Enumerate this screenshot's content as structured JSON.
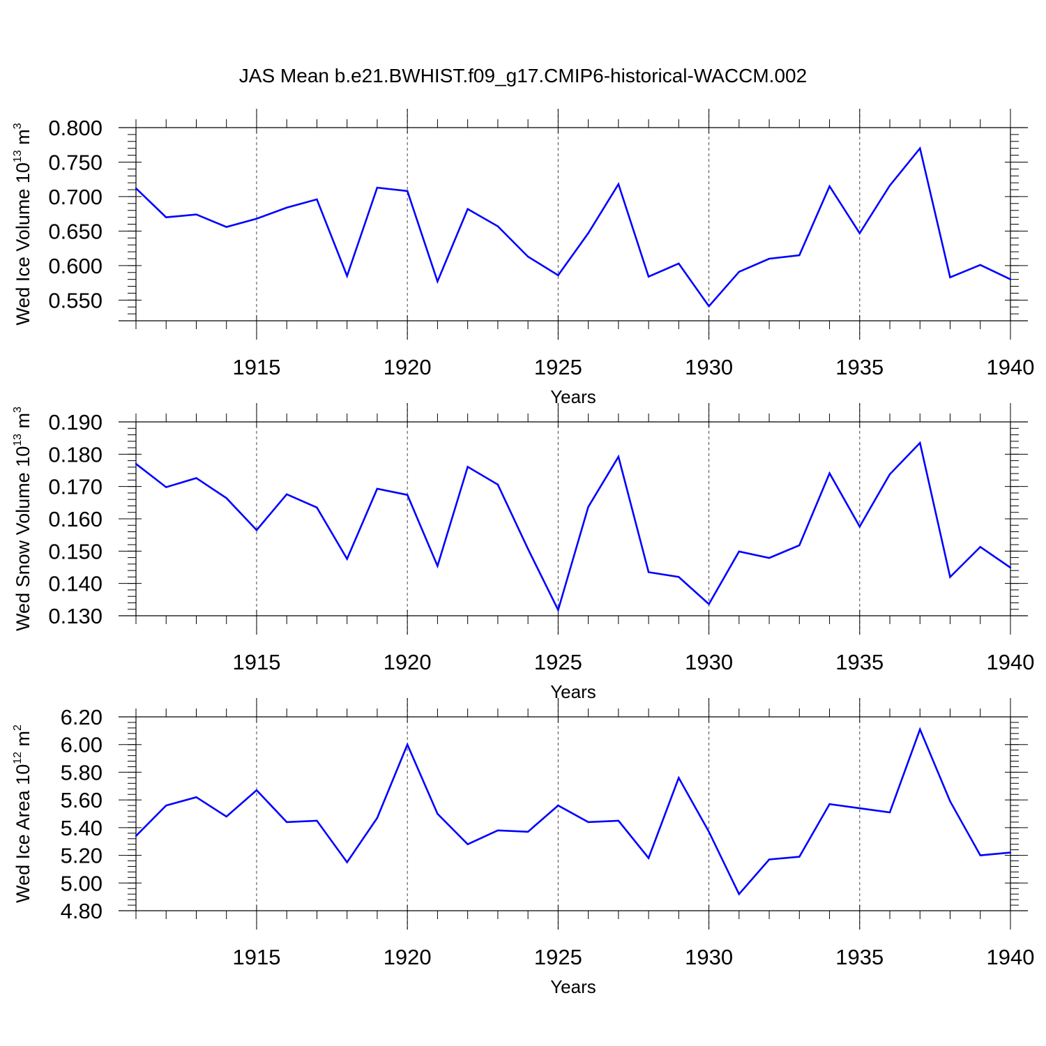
{
  "figure": {
    "title": "JAS Mean b.e21.BWHIST.f09_g17.CMIP6-historical-WACCM.002"
  },
  "chart_data": [
    {
      "type": "line",
      "panel": "ice-volume",
      "ylabel": {
        "main": "Wed Ice Volume 10",
        "exp": "13",
        "unit": " m",
        "unit_exp": "3"
      },
      "xlabel": "Years",
      "xlim": [
        1911,
        1940
      ],
      "ylim": [
        0.52,
        0.8
      ],
      "xticks": [
        1915,
        1920,
        1925,
        1930,
        1935,
        1940
      ],
      "yticks": [
        0.55,
        0.6,
        0.65,
        0.7,
        0.75,
        0.8
      ],
      "ytick_labels": [
        "0.550",
        "0.600",
        "0.650",
        "0.700",
        "0.750",
        "0.800"
      ],
      "grid": "vertical-dashed",
      "color": "#0000ff",
      "x": [
        1911,
        1912,
        1913,
        1914,
        1915,
        1916,
        1917,
        1918,
        1919,
        1920,
        1921,
        1922,
        1923,
        1924,
        1925,
        1926,
        1927,
        1928,
        1929,
        1930,
        1931,
        1932,
        1933,
        1934,
        1935,
        1936,
        1937,
        1938,
        1939,
        1940
      ],
      "values": [
        0.712,
        0.67,
        0.674,
        0.656,
        0.668,
        0.684,
        0.696,
        0.585,
        0.713,
        0.708,
        0.577,
        0.682,
        0.657,
        0.613,
        0.586,
        0.647,
        0.718,
        0.584,
        0.603,
        0.541,
        0.591,
        0.61,
        0.615,
        0.715,
        0.647,
        0.716,
        0.77,
        0.583,
        0.601,
        0.58
      ]
    },
    {
      "type": "line",
      "panel": "snow-volume",
      "ylabel": {
        "main": "Wed Snow Volume 10",
        "exp": "13",
        "unit": " m",
        "unit_exp": "3"
      },
      "xlabel": "Years",
      "xlim": [
        1911,
        1940
      ],
      "ylim": [
        0.13,
        0.19
      ],
      "xticks": [
        1915,
        1920,
        1925,
        1930,
        1935,
        1940
      ],
      "yticks": [
        0.13,
        0.14,
        0.15,
        0.16,
        0.17,
        0.18,
        0.19
      ],
      "ytick_labels": [
        "0.130",
        "0.140",
        "0.150",
        "0.160",
        "0.170",
        "0.180",
        "0.190"
      ],
      "grid": "vertical-dashed",
      "color": "#0000ff",
      "x": [
        1911,
        1912,
        1913,
        1914,
        1915,
        1916,
        1917,
        1918,
        1919,
        1920,
        1921,
        1922,
        1923,
        1924,
        1925,
        1926,
        1927,
        1928,
        1929,
        1930,
        1931,
        1932,
        1933,
        1934,
        1935,
        1936,
        1937,
        1938,
        1939,
        1940
      ],
      "values": [
        0.177,
        0.1698,
        0.1726,
        0.1664,
        0.1565,
        0.1676,
        0.1635,
        0.1476,
        0.1693,
        0.1674,
        0.1454,
        0.1761,
        0.1706,
        0.1507,
        0.1318,
        0.1637,
        0.1792,
        0.1435,
        0.142,
        0.1336,
        0.1499,
        0.1479,
        0.1518,
        0.1741,
        0.1576,
        0.1738,
        0.1835,
        0.142,
        0.1513,
        0.1449
      ]
    },
    {
      "type": "line",
      "panel": "ice-area",
      "ylabel": {
        "main": "Wed Ice Area 10",
        "exp": "12",
        "unit": " m",
        "unit_exp": "2"
      },
      "xlabel": "Years",
      "xlim": [
        1911,
        1940
      ],
      "ylim": [
        4.8,
        6.2
      ],
      "xticks": [
        1915,
        1920,
        1925,
        1930,
        1935,
        1940
      ],
      "yticks": [
        4.8,
        5.0,
        5.2,
        5.4,
        5.6,
        5.8,
        6.0,
        6.2
      ],
      "ytick_labels": [
        "4.80",
        "5.00",
        "5.20",
        "5.40",
        "5.60",
        "5.80",
        "6.00",
        "6.20"
      ],
      "grid": "vertical-dashed",
      "color": "#0000ff",
      "x": [
        1911,
        1912,
        1913,
        1914,
        1915,
        1916,
        1917,
        1918,
        1919,
        1920,
        1921,
        1922,
        1923,
        1924,
        1925,
        1926,
        1927,
        1928,
        1929,
        1930,
        1931,
        1932,
        1933,
        1934,
        1935,
        1936,
        1937,
        1938,
        1939,
        1940
      ],
      "values": [
        5.34,
        5.56,
        5.62,
        5.48,
        5.67,
        5.44,
        5.45,
        5.15,
        5.47,
        6.0,
        5.5,
        5.28,
        5.38,
        5.37,
        5.56,
        5.44,
        5.45,
        5.18,
        5.76,
        5.37,
        4.92,
        5.17,
        5.19,
        5.57,
        5.54,
        5.51,
        6.11,
        5.59,
        5.2,
        5.22
      ]
    }
  ]
}
